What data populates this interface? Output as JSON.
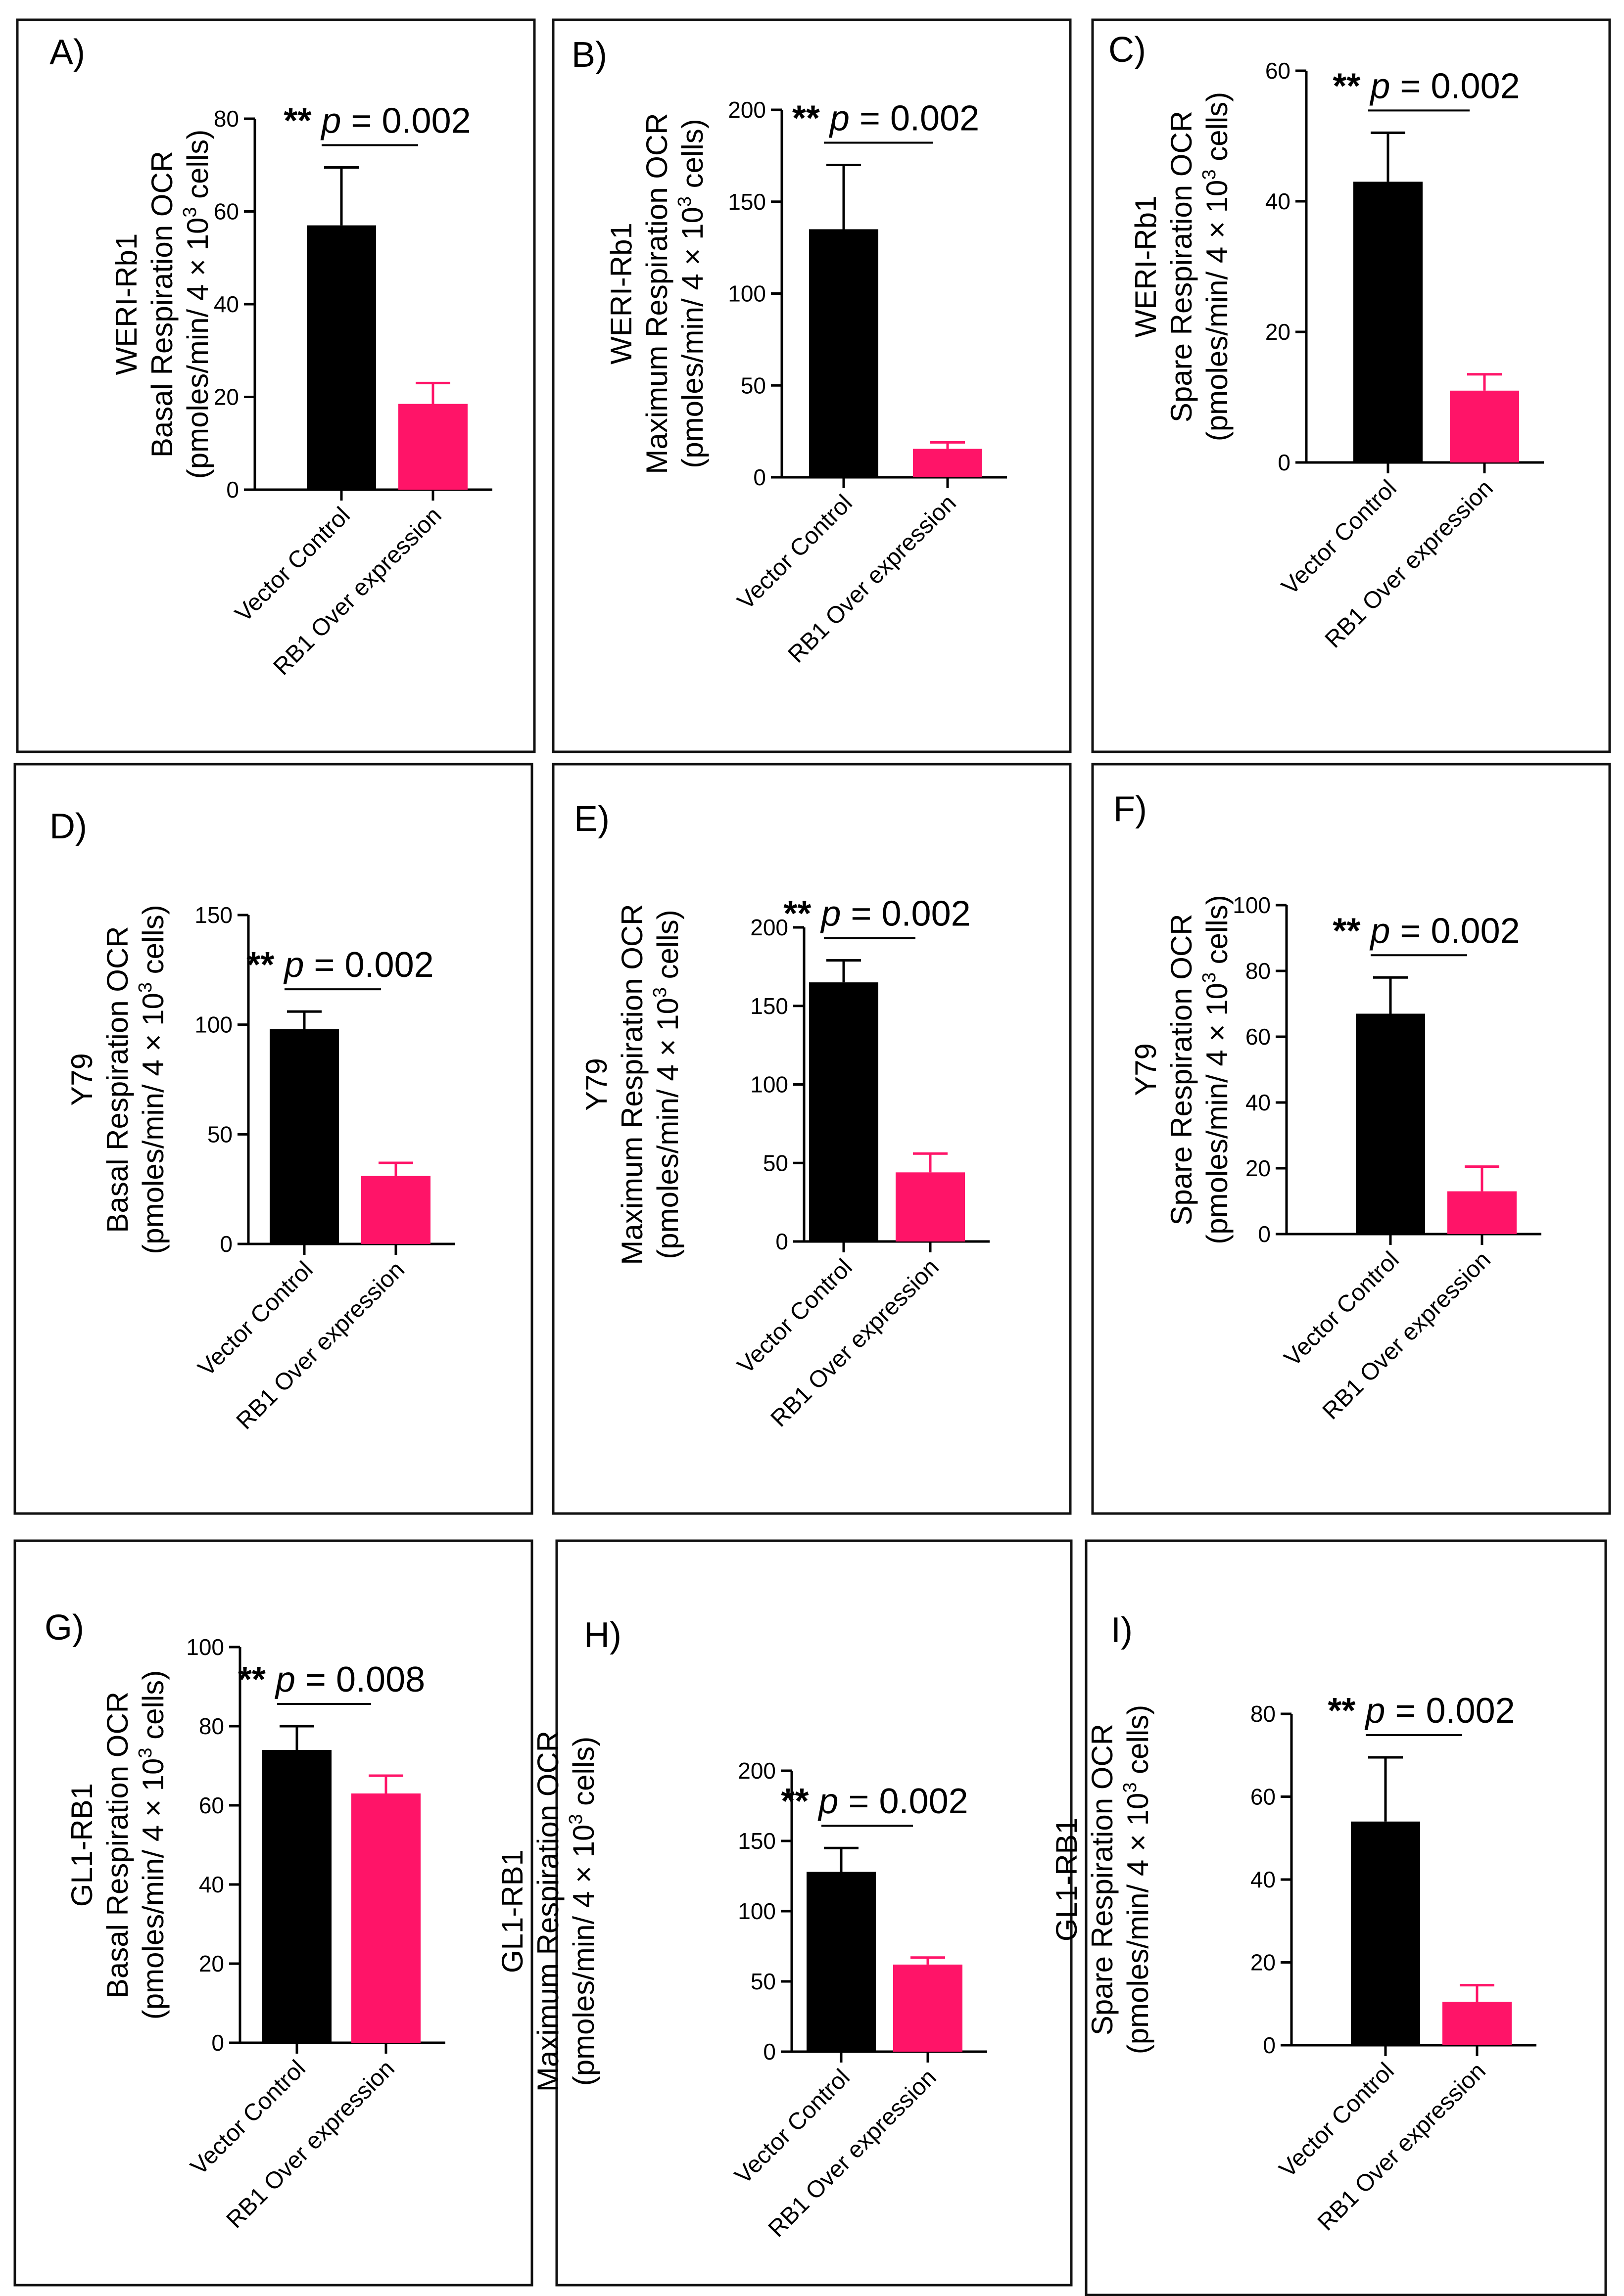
{
  "colors": {
    "control": "#000000",
    "overexpression": "#ff1468",
    "frame": "#111111"
  },
  "chart_data": [
    {
      "id": "A",
      "type": "bar",
      "panel_label": "A)",
      "ylabel": [
        "WERI-Rb1",
        "Basal Respiration OCR"
      ],
      "units": {
        "prefix": "(pmoles/min/ 4 × 10",
        "sup": "3",
        "suffix": " cells)"
      },
      "categories": [
        "Vector Control",
        "RB1 Over expression"
      ],
      "values": [
        57,
        18.5
      ],
      "errors": [
        12.5,
        4.5
      ],
      "ylim": [
        0,
        80
      ],
      "yticks": [
        0,
        20,
        40,
        60,
        80
      ],
      "significance": {
        "stars": "**",
        "p_label": "p",
        "p_value": " = 0.002"
      }
    },
    {
      "id": "B",
      "type": "bar",
      "panel_label": "B)",
      "ylabel": [
        "WERI-Rb1",
        "Maximum Respiration OCR"
      ],
      "units": {
        "prefix": "(pmoles/min/ 4 × 10",
        "sup": "3",
        "suffix": " cells)"
      },
      "categories": [
        "Vector Control",
        "RB1 Over expression"
      ],
      "values": [
        135,
        15.5
      ],
      "errors": [
        35,
        3.5
      ],
      "ylim": [
        0,
        200
      ],
      "yticks": [
        0,
        50,
        100,
        150,
        200
      ],
      "significance": {
        "stars": "**",
        "p_label": "p",
        "p_value": " = 0.002"
      }
    },
    {
      "id": "C",
      "type": "bar",
      "panel_label": "C)",
      "ylabel": [
        "WERI-Rb1",
        "Spare Respiration OCR"
      ],
      "units": {
        "prefix": "(pmoles/min/ 4 × 10",
        "sup": "3",
        "suffix": " cells)"
      },
      "categories": [
        "Vector Control",
        "RB1 Over expression"
      ],
      "values": [
        43,
        11
      ],
      "errors": [
        7.5,
        2.5
      ],
      "ylim": [
        0,
        60
      ],
      "yticks": [
        0,
        20,
        40,
        60
      ],
      "significance": {
        "stars": "**",
        "p_label": "p",
        "p_value": " = 0.002"
      }
    },
    {
      "id": "D",
      "type": "bar",
      "panel_label": "D)",
      "ylabel": [
        "Y79",
        "Basal Respiration OCR"
      ],
      "units": {
        "prefix": "(pmoles/min/ 4 × 10",
        "sup": "3",
        "suffix": " cells)"
      },
      "categories": [
        "Vector Control",
        "RB1 Over expression"
      ],
      "values": [
        98,
        31
      ],
      "errors": [
        8,
        6
      ],
      "ylim": [
        0,
        150
      ],
      "yticks": [
        0,
        50,
        100,
        150
      ],
      "significance": {
        "stars": "**",
        "p_label": "p",
        "p_value": " = 0.002"
      }
    },
    {
      "id": "E",
      "type": "bar",
      "panel_label": "E)",
      "ylabel": [
        "Y79",
        "Maximum Respiration OCR"
      ],
      "units": {
        "prefix": "(pmoles/min/ 4 × 10",
        "sup": "3",
        "suffix": " cells)"
      },
      "categories": [
        "Vector Control",
        "RB1 Over expression"
      ],
      "values": [
        165,
        44
      ],
      "errors": [
        14,
        12
      ],
      "ylim": [
        0,
        200
      ],
      "yticks": [
        0,
        50,
        100,
        150,
        200
      ],
      "significance": {
        "stars": "**",
        "p_label": "p",
        "p_value": " = 0.002"
      }
    },
    {
      "id": "F",
      "type": "bar",
      "panel_label": "F)",
      "ylabel": [
        "Y79",
        "Spare Respiration OCR"
      ],
      "units": {
        "prefix": "(pmoles/min/ 4 × 10",
        "sup": "3",
        "suffix": " cells)"
      },
      "categories": [
        "Vector Control",
        "RB1 Over expression"
      ],
      "values": [
        67,
        13
      ],
      "errors": [
        11,
        7.5
      ],
      "ylim": [
        0,
        100
      ],
      "yticks": [
        0,
        20,
        40,
        60,
        80,
        100
      ],
      "significance": {
        "stars": "**",
        "p_label": "p",
        "p_value": " = 0.002"
      }
    },
    {
      "id": "G",
      "type": "bar",
      "panel_label": "G)",
      "ylabel": [
        "GL1-RB1",
        "Basal Respiration OCR"
      ],
      "units": {
        "prefix": "(pmoles/min/ 4 × 10",
        "sup": "3",
        "suffix": " cells)"
      },
      "categories": [
        "Vector Control",
        "RB1 Over expression"
      ],
      "values": [
        74,
        63
      ],
      "errors": [
        6,
        4.5
      ],
      "ylim": [
        0,
        100
      ],
      "yticks": [
        0,
        20,
        40,
        60,
        80,
        100
      ],
      "significance": {
        "stars": "**",
        "p_label": "p",
        "p_value": " = 0.008"
      }
    },
    {
      "id": "H",
      "type": "bar",
      "panel_label": "H)",
      "ylabel": [
        "GL1-RB1",
        "Maximum Respiration OCR"
      ],
      "units": {
        "prefix": "(pmoles/min/ 4 × 10",
        "sup": "3",
        "suffix": " cells)"
      },
      "categories": [
        "Vector Control",
        "RB1 Over expression"
      ],
      "values": [
        128,
        62
      ],
      "errors": [
        17,
        5
      ],
      "ylim": [
        0,
        200
      ],
      "yticks": [
        0,
        50,
        100,
        150,
        200
      ],
      "significance": {
        "stars": "**",
        "p_label": "p",
        "p_value": " = 0.002"
      }
    },
    {
      "id": "I",
      "type": "bar",
      "panel_label": "I)",
      "ylabel": [
        "GL1-RB1",
        "Spare Respiration OCR"
      ],
      "units": {
        "prefix": "(pmoles/min/ 4 × 10",
        "sup": "3",
        "suffix": " cells)"
      },
      "categories": [
        "Vector Control",
        "RB1 Over expression"
      ],
      "values": [
        54,
        10.5
      ],
      "errors": [
        15.5,
        4
      ],
      "ylim": [
        0,
        80
      ],
      "yticks": [
        0,
        20,
        40,
        60,
        80
      ],
      "significance": {
        "stars": "**",
        "p_label": "p",
        "p_value": " = 0.002"
      }
    }
  ]
}
